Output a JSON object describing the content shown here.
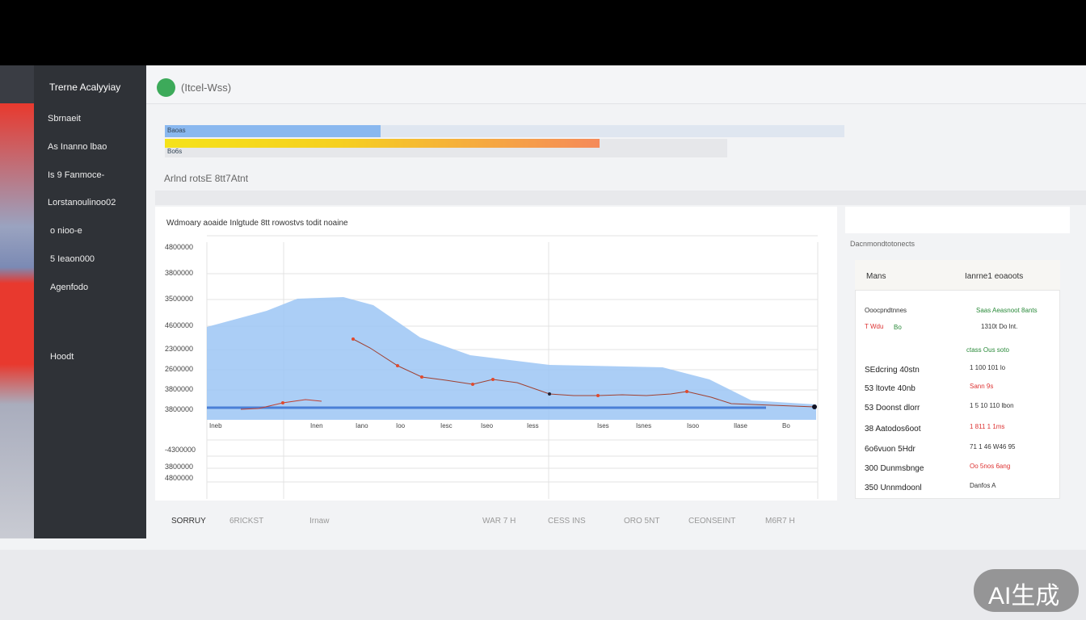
{
  "app": {
    "title": "Trerne Acalyyiay",
    "header_label": "(Itcel-Wss)"
  },
  "sidebar": {
    "items": [
      "Sbrnaeit",
      "As Inanno lbao",
      "Is 9 Fanmoce-",
      "Lorstanoulinoo02",
      "o nioo-e",
      "5 Ieaon000",
      "Agenfodo",
      "Hoodt"
    ]
  },
  "progress": {
    "labels": [
      "Baoas",
      "Bo6s"
    ]
  },
  "section_title": "Arlnd rotsE 8tt7Atnt",
  "chart": {
    "title": "Wdmoary aoaide Inlgtude 8tt rowostvs todit noaine",
    "y_labels": [
      "4800000",
      "3800000",
      "3500000",
      "4600000",
      "2300000",
      "2600000",
      "3800000",
      "3800000",
      "-4300000",
      "3800000",
      "4800000"
    ],
    "x_labels": [
      "Ineb",
      "Inen",
      "Iano",
      "Ioo",
      "Iesc",
      "Iseo",
      "Iess",
      "Ises",
      "Isnes",
      "Isoo",
      "Ilase",
      "Bo"
    ]
  },
  "side_panel": {
    "title": "Dacnmondtotonects",
    "columns": [
      "Mans",
      "Ianrne1 eoaoots"
    ],
    "summary": [
      "Ooocpndtnnes",
      "Saas Aeasnoot 8ants",
      "T Wdu",
      "Bo",
      "1310t Do lnt.",
      "ctass Ous soto"
    ],
    "rows": [
      [
        "SEdcring 40stn",
        "1 100 101 lo"
      ],
      [
        "53 ltovte 40nb",
        "Sann 9s"
      ],
      [
        "53 Doonst dlorr",
        "1 5 10 110 lbon"
      ],
      [
        "38 Aatodos6oot",
        "1 811 1 1ms"
      ],
      [
        "6o6vuon 5Hdr",
        "71 1 46 W46 95"
      ],
      [
        "300 Dunmsbnge",
        "Oo 5nos 6ang"
      ],
      [
        "350 Unnmdoonl",
        "Danfos A"
      ]
    ]
  },
  "tabs": [
    "SORRUY",
    "6RICKST",
    "Irnaw",
    "WAR 7 H",
    "CESS INS",
    "ORO 5NT",
    "CEONSEINT",
    "M6R7 H"
  ],
  "badge": "AI生成"
}
